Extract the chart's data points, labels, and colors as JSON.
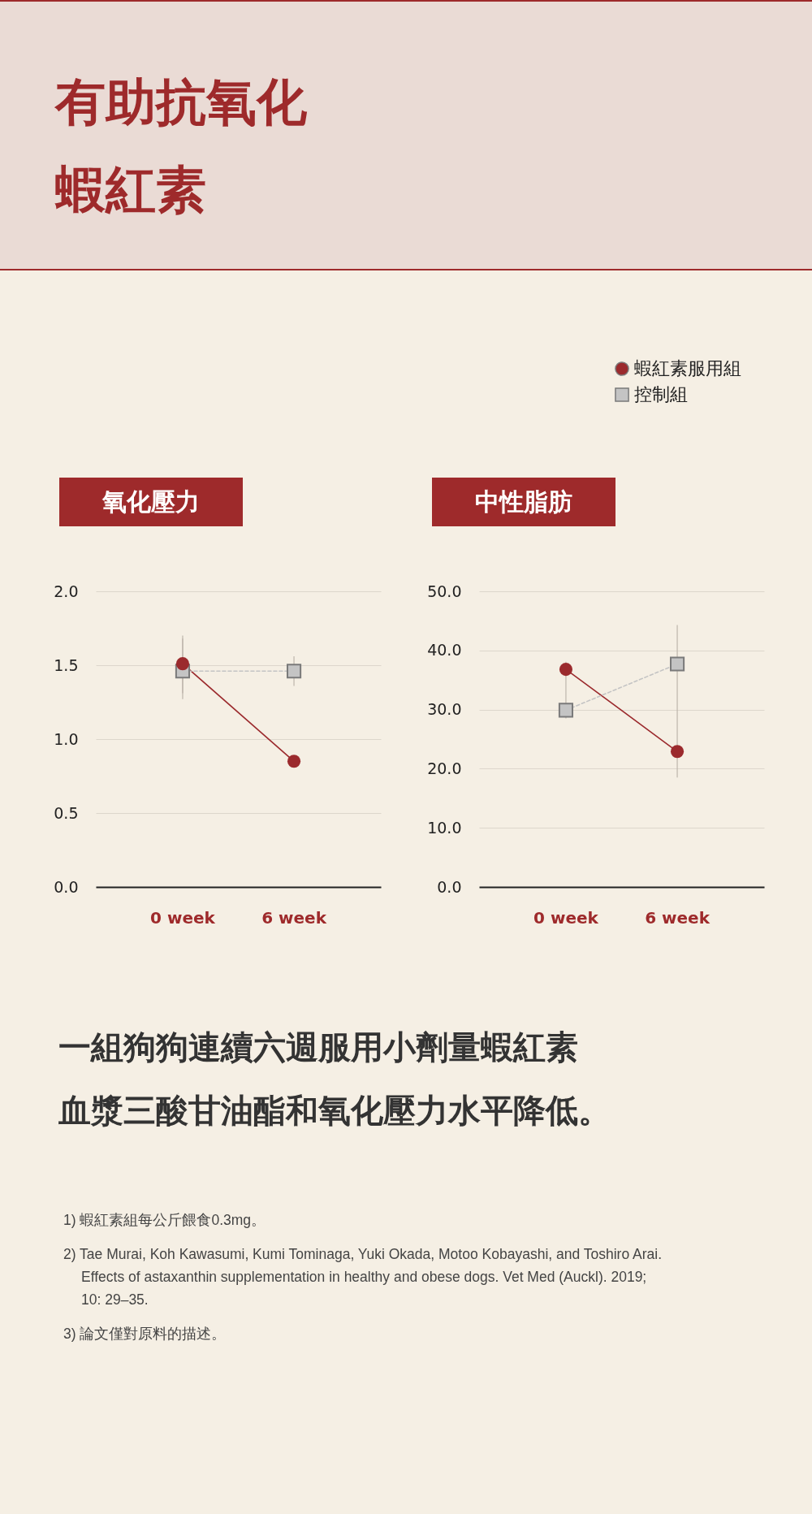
{
  "chart_data": [
    {
      "type": "line",
      "title": "氧化壓力",
      "categories": [
        "0 week",
        "6 week"
      ],
      "series": [
        {
          "color": "#9b2a2d",
          "marker": "circle",
          "line_style": "solid",
          "values": [
            1.51,
            0.85
          ],
          "errors": [
            [
              1.31,
              1.68
            ],
            null
          ]
        },
        {
          "color": "#c4c4c4",
          "marker": "square",
          "line_style": "dashed",
          "values": [
            1.46,
            1.46
          ],
          "errors": [
            [
              1.27,
              1.7
            ],
            [
              1.36,
              1.56
            ]
          ]
        }
      ],
      "ylim": [
        0,
        2
      ],
      "yticks": [
        {
          "value": 0,
          "label": "0.0"
        },
        {
          "value": 0.5,
          "label": "0.5"
        },
        {
          "value": 1,
          "label": "1.0"
        },
        {
          "value": 1.5,
          "label": "1.5"
        },
        {
          "value": 2,
          "label": "2.0"
        }
      ],
      "grid": "y",
      "legend": false,
      "annotations": [
        "有助抗氧化",
        "蝦紅素",
        "一組狗狗連續六週服用小劑量蝦紅素",
        "血漿三酸甘油酯和氧化壓力水平降低。",
        "1)  蝦紅素組每公斤餵食0.3mg。",
        "2) Tae Murai, Koh Kawasumi, Kumi Tominaga, Yuki Okada, Motoo Kobayashi, and Toshiro Arai. Effects of astaxanthin supplementation in healthy and obese dogs. Vet Med (Auckl). 2019; 10: 29–35.",
        "3)  論文僅對原料的描述。"
      ]
    },
    {
      "type": "line",
      "title": "中性脂肪",
      "categories": [
        "0 week",
        "6 week"
      ],
      "series": [
        {
          "name": "蝦紅素服用組",
          "color": "#9b2a2d",
          "marker": "circle",
          "line_style": "solid",
          "values": [
            36.8,
            22.9
          ]
        },
        {
          "name": "控制組",
          "color": "#c4c4c4",
          "marker": "square",
          "line_style": "dashed",
          "values": [
            29.9,
            37.7
          ],
          "errors": [
            [
              28.5,
              38.1
            ],
            [
              18.5,
              44.3
            ]
          ]
        }
      ],
      "ylim": [
        0,
        50
      ],
      "yticks": [
        {
          "value": 0,
          "label": "0.0"
        },
        {
          "value": 10,
          "label": "10.0"
        },
        {
          "value": 20,
          "label": "20.0"
        },
        {
          "value": 30,
          "label": "30.0"
        },
        {
          "value": 40,
          "label": "40.0"
        },
        {
          "value": 50,
          "label": "50.0"
        }
      ],
      "grid": "y",
      "legend": "top right"
    }
  ]
}
